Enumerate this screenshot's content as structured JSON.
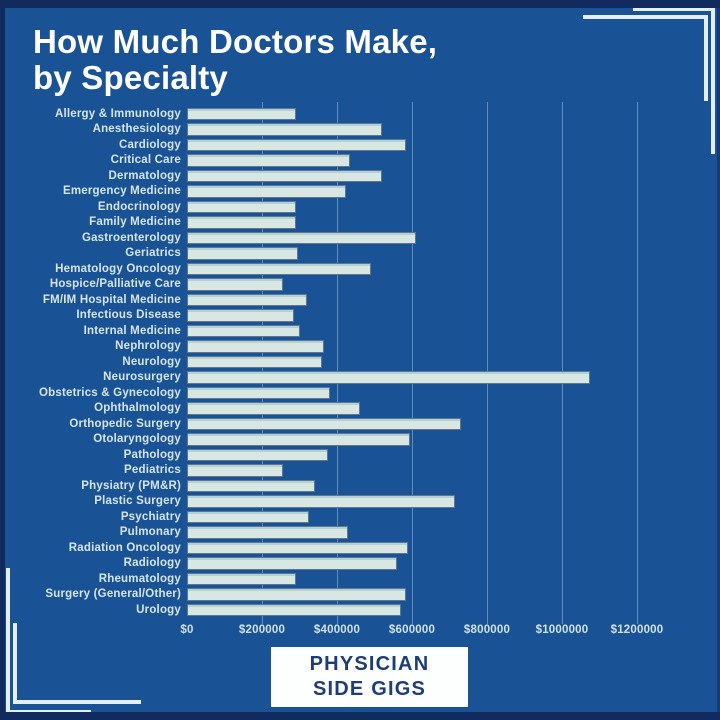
{
  "title": {
    "line1": "How Much Doctors Make,",
    "line2": "by Specialty"
  },
  "badge": {
    "line1": "PHYSICIAN",
    "line2": "SIDE GIGS"
  },
  "colors": {
    "background": "#1a5296",
    "edge_dark": "#122b5e",
    "bar_fill": "#d8e7e2",
    "label_text": "#d5e5ee",
    "title_text": "#ffffff",
    "badge_text": "#1e3d74",
    "bracket": "#e4eef6"
  },
  "chart_data": {
    "type": "bar",
    "orientation": "horizontal",
    "title": "How Much Doctors Make, by Specialty",
    "xlabel": "",
    "ylabel": "",
    "grid": true,
    "xlim": [
      0,
      1400000
    ],
    "tick_values": [
      0,
      200000,
      400000,
      600000,
      800000,
      1000000,
      1200000
    ],
    "x_tick_labels": [
      "$0",
      "$200000",
      "$400000",
      "$600000",
      "$800000",
      "$1000000",
      "$1200000"
    ],
    "categories": [
      "Allergy & Immunology",
      "Anesthesiology",
      "Cardiology",
      "Critical Care",
      "Dermatology",
      "Emergency Medicine",
      "Endocrinology",
      "Family Medicine",
      "Gastroenterology",
      "Geriatrics",
      "Hematology Oncology",
      "Hospice/Palliative Care",
      "FM/IM Hospital Medicine",
      "Infectious Disease",
      "Internal Medicine",
      "Nephrology",
      "Neurology",
      "Neurosurgery",
      "Obstetrics & Gynecology",
      "Ophthalmology",
      "Orthopedic Surgery",
      "Otolaryngology",
      "Pathology",
      "Pediatrics",
      "Physiatry (PM&R)",
      "Plastic Surgery",
      "Psychiatry",
      "Pulmonary",
      "Radiation Oncology",
      "Radiology",
      "Rheumatology",
      "Surgery (General/Other)",
      "Urology"
    ],
    "values": [
      290000,
      520000,
      585000,
      435000,
      520000,
      425000,
      290000,
      290000,
      610000,
      295000,
      490000,
      255000,
      320000,
      285000,
      300000,
      365000,
      360000,
      1075000,
      380000,
      460000,
      730000,
      595000,
      375000,
      255000,
      340000,
      715000,
      325000,
      430000,
      590000,
      560000,
      290000,
      585000,
      570000
    ]
  }
}
